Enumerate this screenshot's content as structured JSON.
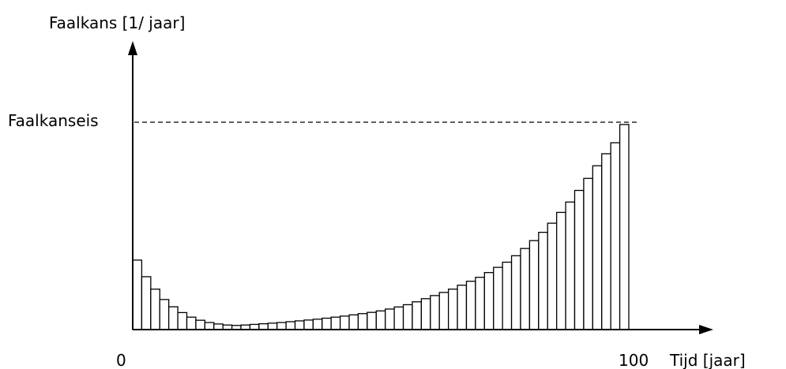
{
  "chart_data": {
    "type": "bar",
    "title": "",
    "ylabel": "Faalkans [1/ jaar]",
    "xlabel": "Tijd [jaar]",
    "x_tick_labels": [
      "0",
      "100"
    ],
    "xlim": [
      0,
      100
    ],
    "threshold_label": "Faalkanseis",
    "threshold_value": 1.0,
    "ylim": [
      0,
      1.0
    ],
    "grid": false,
    "bar_values": [
      0.335,
      0.255,
      0.195,
      0.145,
      0.11,
      0.082,
      0.06,
      0.045,
      0.034,
      0.027,
      0.022,
      0.02,
      0.022,
      0.025,
      0.028,
      0.031,
      0.034,
      0.038,
      0.042,
      0.046,
      0.05,
      0.055,
      0.06,
      0.065,
      0.071,
      0.077,
      0.083,
      0.09,
      0.099,
      0.109,
      0.12,
      0.134,
      0.149,
      0.164,
      0.179,
      0.195,
      0.214,
      0.233,
      0.252,
      0.275,
      0.3,
      0.325,
      0.356,
      0.391,
      0.429,
      0.469,
      0.513,
      0.565,
      0.615,
      0.671,
      0.729,
      0.79,
      0.848,
      0.901,
      0.989
    ]
  }
}
